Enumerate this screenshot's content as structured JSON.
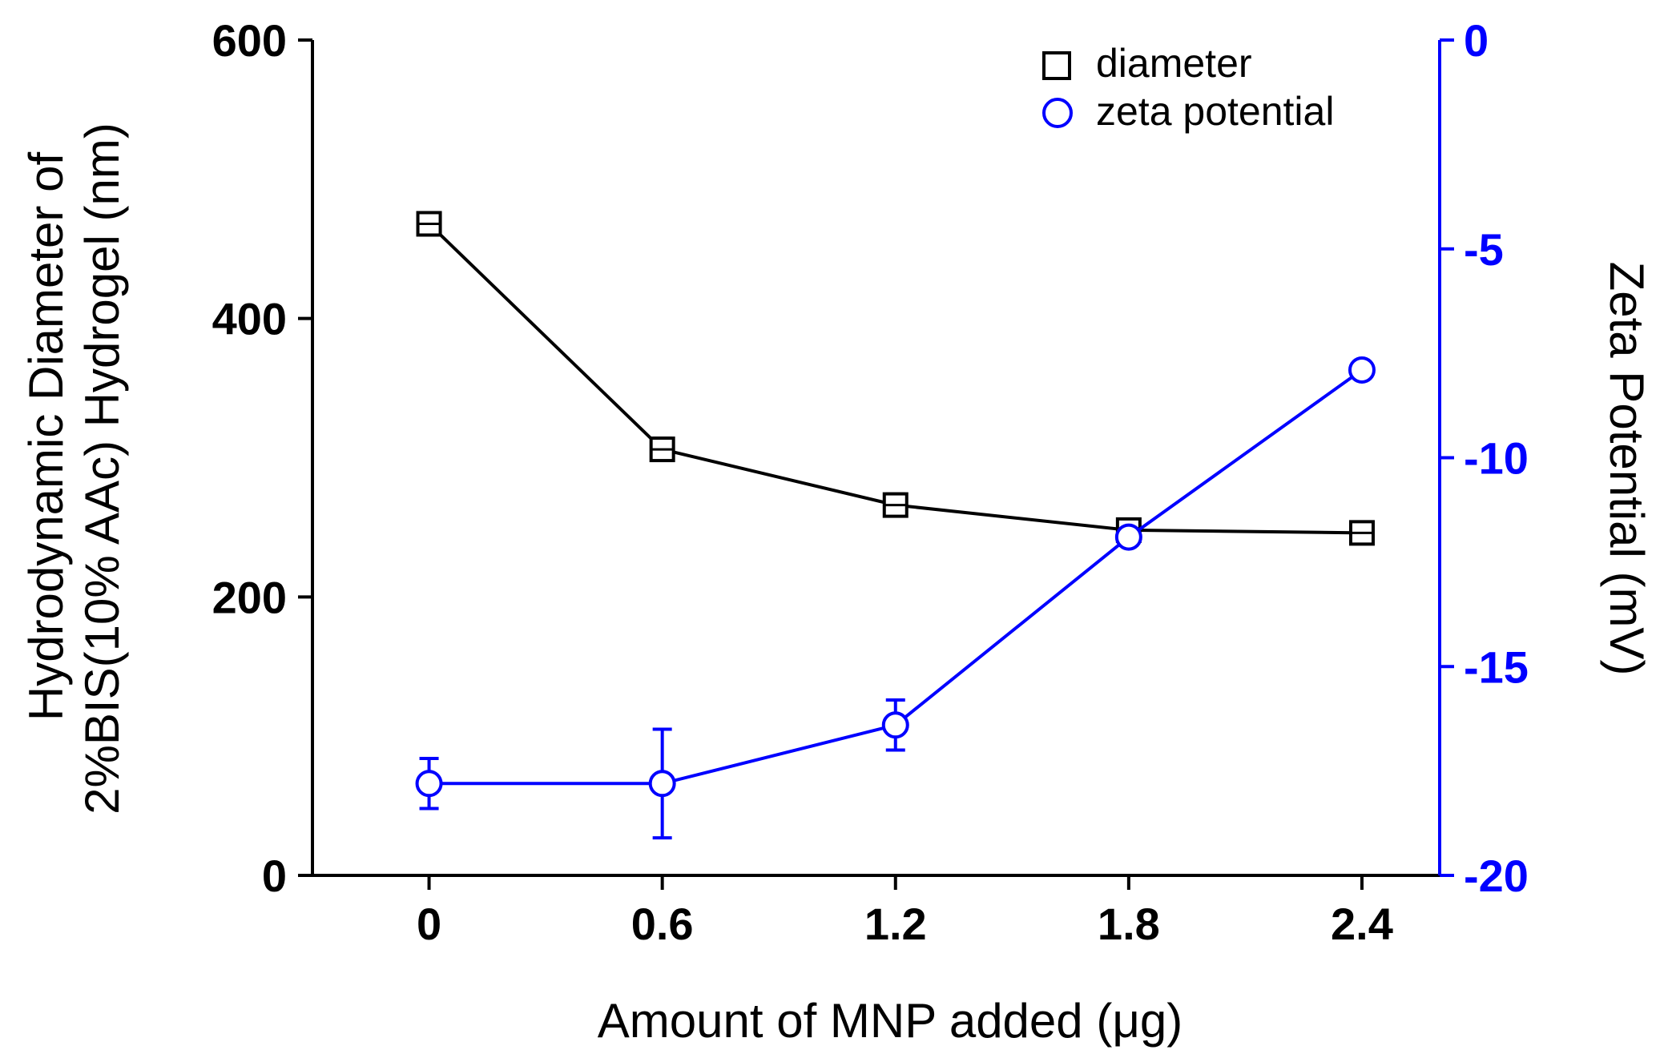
{
  "chart_data": {
    "type": "line",
    "xlabel": "Amount of MNP added (μg)",
    "ylabel_left_line1": "Hydrodynamic Diameter of",
    "ylabel_left_line2": "2%BIS(10% AAc) Hydrogel (nm)",
    "ylabel_right": "Zeta Potential (mV)",
    "x_tick_labels": [
      "0",
      "0.6",
      "1.2",
      "1.8",
      "2.4"
    ],
    "y_left_ticks": [
      "0",
      "200",
      "400",
      "600"
    ],
    "y_right_ticks": [
      "0",
      "-5",
      "-10",
      "-15",
      "-20"
    ],
    "xlim": [
      -0.3,
      2.6
    ],
    "ylim_left": [
      0,
      600
    ],
    "ylim_right": [
      -20,
      0
    ],
    "legend_position": "top-right",
    "series": [
      {
        "name": "diameter",
        "axis": "left",
        "marker": "square",
        "color": "#000000",
        "x": [
          0,
          0.6,
          1.2,
          1.8,
          2.4
        ],
        "y": [
          468,
          306,
          266,
          248,
          246
        ],
        "err": [
          8,
          8,
          8,
          5,
          6
        ]
      },
      {
        "name": "zeta potential",
        "axis": "right",
        "marker": "circle",
        "color": "#0000ff",
        "x": [
          0,
          0.6,
          1.2,
          1.8,
          2.4
        ],
        "y": [
          -17.8,
          -17.8,
          -16.4,
          -11.9,
          -7.9
        ],
        "err": [
          0.6,
          1.3,
          0.6,
          0.2,
          0.1
        ]
      }
    ]
  }
}
